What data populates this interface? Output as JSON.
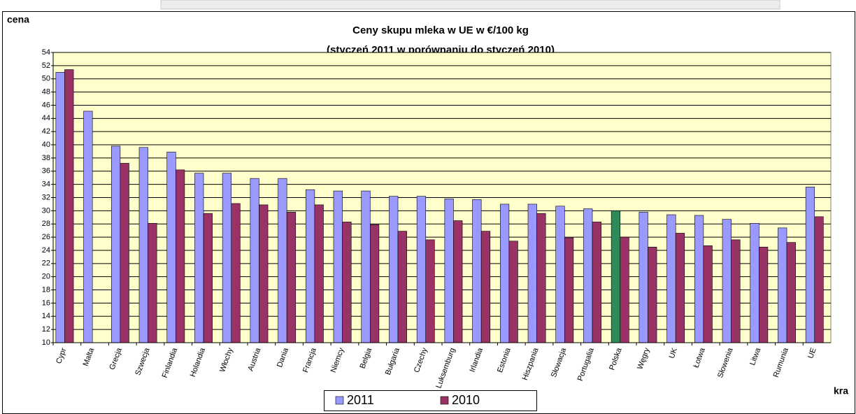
{
  "chart_data": {
    "type": "bar",
    "title": "Ceny skupu mleka w UE w €/100 kg",
    "subtitle": "(styczeń 2011 w porównaniu do styczeń 2010)",
    "y_label": "cena",
    "x_label": "kra",
    "categories": [
      "Cypr",
      "Malta",
      "Grecja",
      "Szwecja",
      "Finlandia",
      "Holandia",
      "Włochy",
      "Austria",
      "Dania",
      "Francja",
      "Niemcy",
      "Belgia",
      "Bułgaria",
      "Czechy",
      "Luksemburg",
      "Irlandia",
      "Estonia",
      "Hiszpania",
      "Słowacja",
      "Portugalia",
      "Polska",
      "Węgry",
      "UK",
      "Łotwa",
      "Słowenia",
      "Litwa",
      "Rumunia",
      "UE"
    ],
    "series": [
      {
        "name": "2011",
        "color": "#9999ff",
        "colors": [
          "#9999ff",
          "#9999ff",
          "#9999ff",
          "#9999ff",
          "#9999ff",
          "#9999ff",
          "#9999ff",
          "#9999ff",
          "#9999ff",
          "#9999ff",
          "#9999ff",
          "#9999ff",
          "#9999ff",
          "#9999ff",
          "#9999ff",
          "#9999ff",
          "#9999ff",
          "#9999ff",
          "#9999ff",
          "#9999ff",
          "#2e8b57",
          "#9999ff",
          "#9999ff",
          "#9999ff",
          "#9999ff",
          "#9999ff",
          "#9999ff",
          "#9999ff"
        ],
        "values": [
          51.0,
          45.1,
          39.8,
          39.6,
          38.9,
          35.7,
          35.7,
          34.9,
          34.9,
          33.2,
          33.0,
          33.0,
          32.2,
          32.2,
          31.8,
          31.7,
          31.0,
          31.0,
          30.7,
          30.3,
          30.0,
          29.8,
          29.4,
          29.3,
          28.7,
          28.1,
          27.4,
          33.6
        ]
      },
      {
        "name": "2010",
        "color": "#993366",
        "values": [
          51.4,
          null,
          37.2,
          28.1,
          36.2,
          29.6,
          31.1,
          30.9,
          29.8,
          30.9,
          28.3,
          27.9,
          26.9,
          25.6,
          28.5,
          26.9,
          25.4,
          29.6,
          25.9,
          28.3,
          26.0,
          24.5,
          26.6,
          24.7,
          25.6,
          24.5,
          25.2,
          29.1
        ]
      }
    ],
    "ylim": [
      10,
      54
    ],
    "yticks": [
      10,
      12,
      14,
      16,
      18,
      20,
      22,
      24,
      26,
      28,
      30,
      32,
      34,
      36,
      38,
      40,
      42,
      44,
      46,
      48,
      50,
      52,
      54
    ],
    "grid": true,
    "plot_color": "#ffffcc",
    "legend": "bottom"
  }
}
